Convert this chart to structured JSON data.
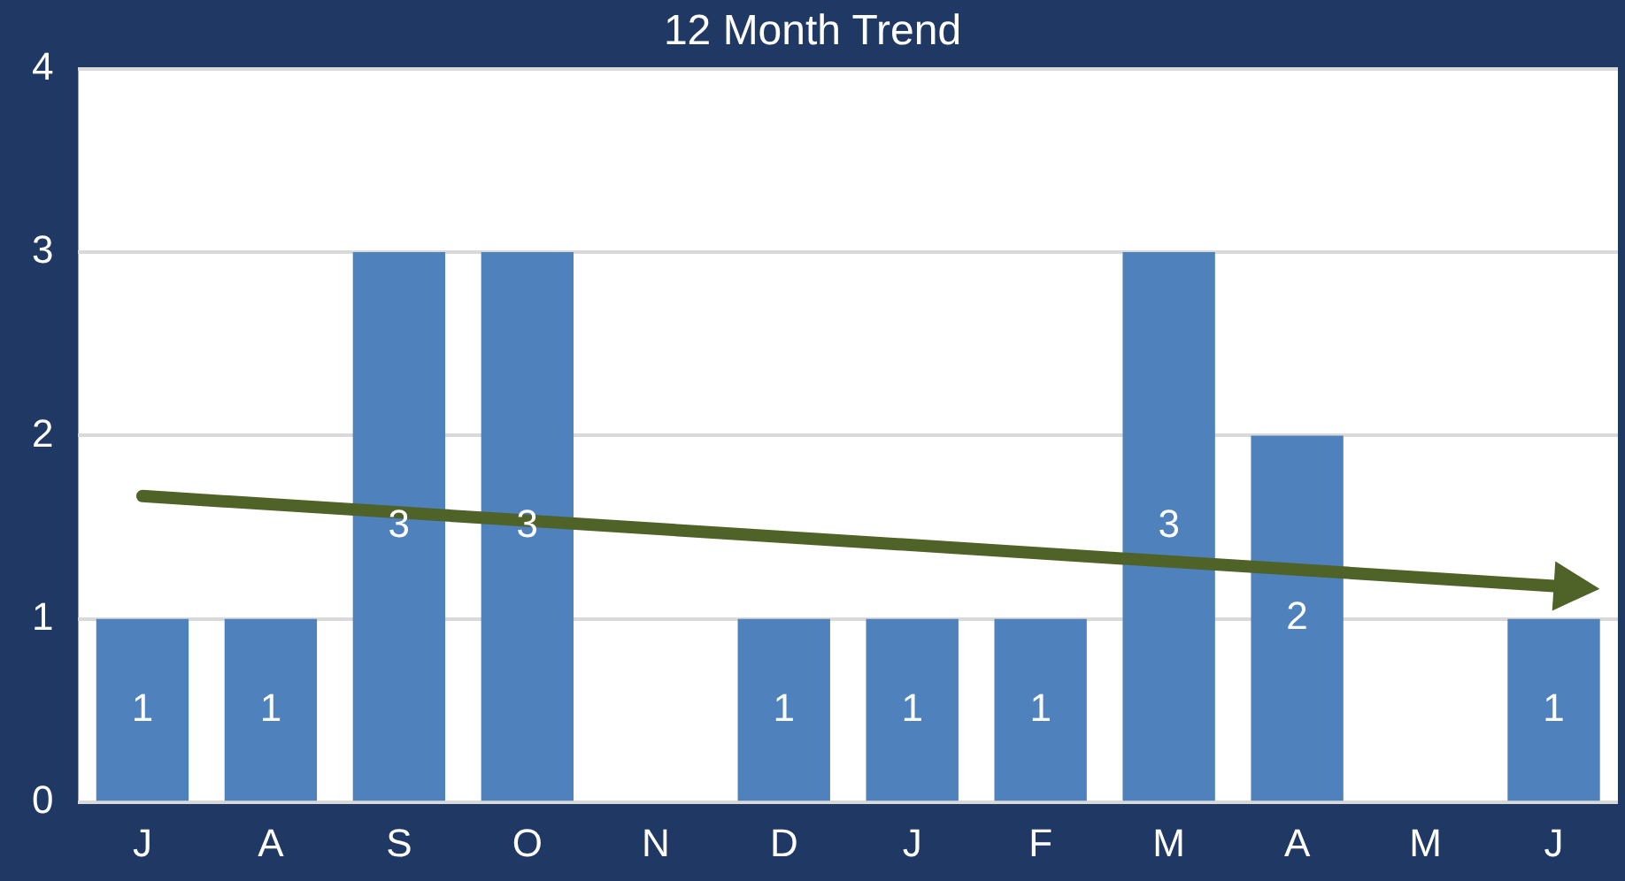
{
  "chart_data": {
    "type": "bar",
    "title": "12 Month Trend",
    "categories": [
      "J",
      "A",
      "S",
      "O",
      "N",
      "D",
      "J",
      "F",
      "M",
      "A",
      "M",
      "J"
    ],
    "series": [
      {
        "color": "#4f81bd",
        "values": [
          1,
          1,
          3,
          3,
          0,
          1,
          1,
          1,
          3,
          2,
          0,
          1
        ],
        "value_labels": [
          "1",
          "1",
          "3",
          "3",
          null,
          "1",
          "1",
          "1",
          "3",
          "2",
          null,
          "1"
        ]
      },
      {
        "type": "line",
        "color": "#4f6228",
        "values": [
          1.67,
          null,
          null,
          null,
          null,
          null,
          null,
          null,
          null,
          null,
          null,
          1.18
        ]
      }
    ],
    "ylim": [
      0,
      4
    ],
    "yticks": [
      0,
      1,
      2,
      3,
      4
    ],
    "grid": "y",
    "legend": false
  }
}
